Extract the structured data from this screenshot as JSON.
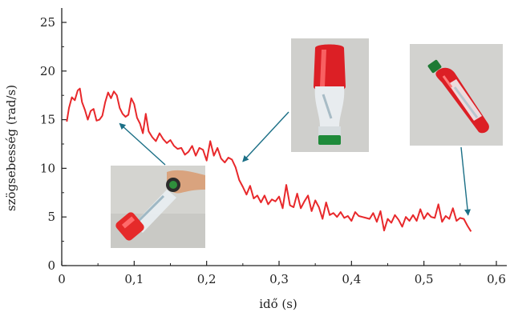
{
  "chart_data": {
    "type": "line",
    "xlabel": "idő (s)",
    "ylabel": "szögsebesség (rad/s)",
    "xlim": [
      0,
      0.6
    ],
    "ylim": [
      0,
      25
    ],
    "x_ticks": [
      "0",
      "0,1",
      "0,2",
      "0,3",
      "0,4",
      "0,5",
      "0,6"
    ],
    "y_ticks": [
      "0",
      "5",
      "10",
      "15",
      "20",
      "25"
    ],
    "grid": false,
    "line_color": "#e8282b",
    "arrow_color": "#1b6f86",
    "series": [
      {
        "x": [
          0.007,
          0.01,
          0.014,
          0.018,
          0.022,
          0.025,
          0.028,
          0.032,
          0.036,
          0.04,
          0.044,
          0.048,
          0.052,
          0.056,
          0.06,
          0.064,
          0.068,
          0.072,
          0.076,
          0.08,
          0.084,
          0.088,
          0.092,
          0.096,
          0.1,
          0.104,
          0.108,
          0.112,
          0.116,
          0.12,
          0.125,
          0.13,
          0.135,
          0.14,
          0.145,
          0.15,
          0.155,
          0.16,
          0.165,
          0.17,
          0.175,
          0.18,
          0.185,
          0.19,
          0.195,
          0.2,
          0.205,
          0.21,
          0.215,
          0.22,
          0.225,
          0.23,
          0.235,
          0.24,
          0.245,
          0.25,
          0.255,
          0.26,
          0.265,
          0.27,
          0.275,
          0.28,
          0.285,
          0.29,
          0.295,
          0.3,
          0.305,
          0.31,
          0.315,
          0.32,
          0.325,
          0.33,
          0.335,
          0.34,
          0.345,
          0.35,
          0.355,
          0.36,
          0.365,
          0.37,
          0.375,
          0.38,
          0.385,
          0.39,
          0.395,
          0.4,
          0.405,
          0.41,
          0.415,
          0.42,
          0.425,
          0.43,
          0.435,
          0.44,
          0.445,
          0.45,
          0.455,
          0.46,
          0.465,
          0.47,
          0.475,
          0.48,
          0.485,
          0.49,
          0.495,
          0.5,
          0.505,
          0.51,
          0.515,
          0.52,
          0.525,
          0.53,
          0.535,
          0.54,
          0.545,
          0.55,
          0.555,
          0.56,
          0.565
        ],
        "y": [
          14.8,
          16.2,
          17.3,
          17.0,
          18.0,
          18.2,
          16.8,
          16.0,
          15.0,
          15.9,
          16.1,
          14.9,
          15.0,
          15.4,
          16.8,
          17.8,
          17.2,
          17.9,
          17.5,
          16.2,
          15.6,
          15.3,
          15.5,
          17.2,
          16.6,
          15.2,
          14.6,
          13.6,
          15.6,
          13.8,
          13.2,
          12.8,
          13.6,
          13.0,
          12.6,
          12.9,
          12.3,
          12.0,
          12.1,
          11.4,
          11.7,
          12.3,
          11.3,
          12.1,
          11.9,
          10.8,
          12.8,
          11.3,
          12.1,
          11.0,
          10.6,
          11.1,
          10.9,
          10.1,
          8.8,
          8.1,
          7.3,
          8.2,
          6.9,
          7.2,
          6.5,
          7.2,
          6.3,
          6.8,
          6.6,
          7.1,
          5.9,
          8.3,
          6.2,
          6.0,
          7.4,
          5.9,
          6.6,
          7.2,
          5.6,
          6.7,
          6.0,
          4.8,
          6.5,
          5.2,
          5.4,
          5.0,
          5.5,
          4.9,
          5.1,
          4.6,
          5.5,
          5.1,
          5.0,
          4.9,
          4.8,
          5.4,
          4.5,
          5.6,
          3.6,
          4.8,
          4.4,
          5.2,
          4.7,
          4.0,
          5.0,
          4.6,
          5.2,
          4.6,
          5.8,
          4.8,
          5.4,
          5.0,
          4.9,
          6.3,
          4.5,
          5.1,
          4.8,
          5.9,
          4.6,
          4.9,
          4.8,
          4.1,
          3.5
        ]
      }
    ]
  },
  "photos": [
    {
      "subject": "bottle-flip-start-photo",
      "arrow_target_x": 0.08,
      "arrow_target_y": 14.6
    },
    {
      "subject": "bottle-flip-middle-photo",
      "arrow_target_x": 0.25,
      "arrow_target_y": 10.7
    },
    {
      "subject": "bottle-flip-end-photo",
      "arrow_target_x": 0.561,
      "arrow_target_y": 5.2
    }
  ]
}
